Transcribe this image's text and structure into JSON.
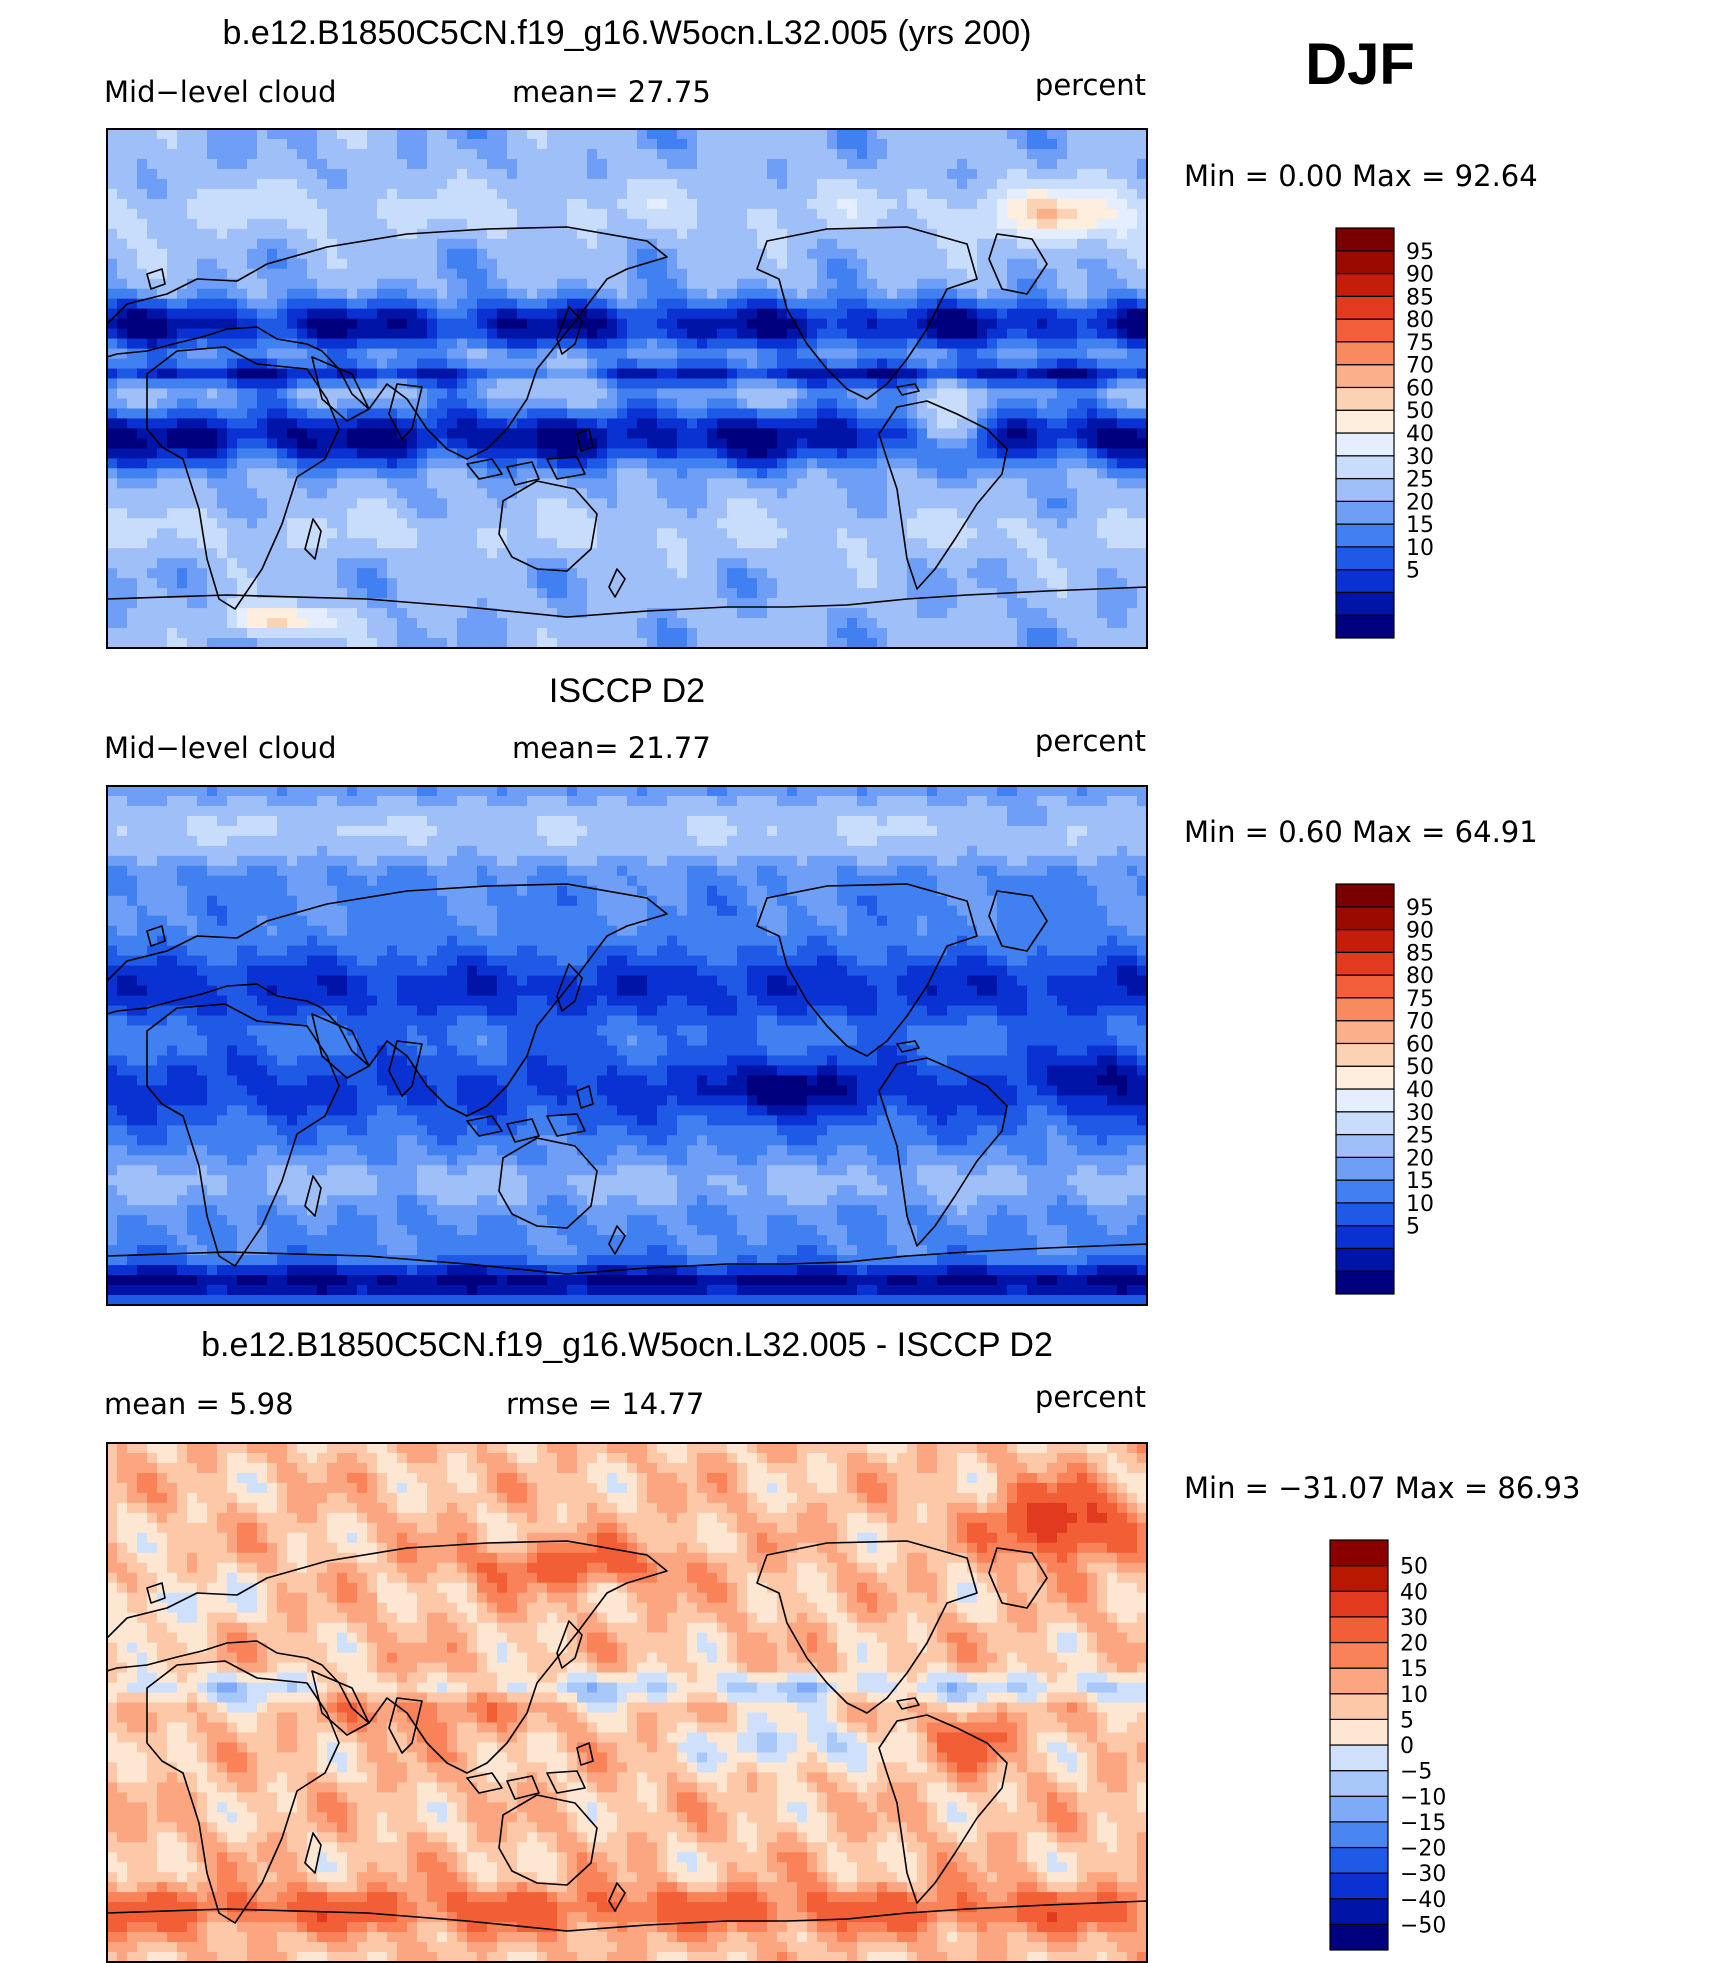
{
  "season": "DJF",
  "palettes": {
    "absolute": [
      "#00007f",
      "#0014a8",
      "#0a32d2",
      "#1e5ae6",
      "#4080f0",
      "#6e9ef5",
      "#9fbff9",
      "#c8dcfc",
      "#e4eefe",
      "#fdeedd",
      "#fcd2b4",
      "#fbb08a",
      "#f98a5e",
      "#f2603a",
      "#e23a1e",
      "#c41e0a",
      "#9a0a00",
      "#7a0000"
    ],
    "difference": [
      "#00007f",
      "#0014a8",
      "#0a32d2",
      "#1e5ae6",
      "#4a86f2",
      "#7eaaf7",
      "#a9c8fa",
      "#cfe0fc",
      "#fde6d2",
      "#fcc8a8",
      "#fba680",
      "#f98258",
      "#f25e36",
      "#e23a1e",
      "#b81800",
      "#8a0000"
    ]
  },
  "panels": [
    {
      "title": "b.e12.B1850C5CN.f19_g16.W5ocn.L32.005 (yrs 200)",
      "left_label": "Mid−level cloud",
      "center_label": "mean=   27.75",
      "units": "percent",
      "minmax": "Min  =      0.00  Max  =     92.64",
      "palette": "absolute",
      "legend_ticks": [
        "95",
        "90",
        "85",
        "80",
        "75",
        "70",
        "60",
        "50",
        "40",
        "30",
        "25",
        "20",
        "15",
        "10",
        "5"
      ],
      "field": "model"
    },
    {
      "title": "ISCCP D2",
      "left_label": "Mid−level cloud",
      "center_label": "mean=   21.77",
      "units": "percent",
      "minmax": "Min  =      0.60  Max  =     64.91",
      "palette": "absolute",
      "legend_ticks": [
        "95",
        "90",
        "85",
        "80",
        "75",
        "70",
        "60",
        "50",
        "40",
        "30",
        "25",
        "20",
        "15",
        "10",
        "5"
      ],
      "field": "obs"
    },
    {
      "title": "b.e12.B1850C5CN.f19_g16.W5ocn.L32.005 - ISCCP D2",
      "left_label": "mean  =      5.98",
      "center_label": "rmse  =     14.77",
      "units": "percent",
      "minmax": "Min  = −31.07  Max  =     86.93",
      "palette": "difference",
      "legend_ticks": [
        "50",
        "40",
        "30",
        "20",
        "15",
        "10",
        "5",
        "0",
        "−5",
        "−10",
        "−15",
        "−20",
        "−30",
        "−40",
        "−50"
      ],
      "field": "diff"
    }
  ],
  "chart_data": [
    {
      "type": "heatmap",
      "title": "b.e12.B1850C5CN.f19_g16.W5ocn.L32.005 (yrs 200)",
      "variable": "Mid-level cloud",
      "units": "percent",
      "mean": 27.75,
      "min": 0.0,
      "max": 92.64,
      "contour_levels": [
        5,
        10,
        15,
        20,
        25,
        30,
        40,
        50,
        60,
        70,
        75,
        80,
        85,
        90,
        95
      ],
      "lon_range": [
        0,
        360
      ],
      "lat_range": [
        -90,
        90
      ]
    },
    {
      "type": "heatmap",
      "title": "ISCCP D2",
      "variable": "Mid-level cloud",
      "units": "percent",
      "mean": 21.77,
      "min": 0.6,
      "max": 64.91,
      "contour_levels": [
        5,
        10,
        15,
        20,
        25,
        30,
        40,
        50,
        60,
        70,
        75,
        80,
        85,
        90,
        95
      ],
      "lon_range": [
        0,
        360
      ],
      "lat_range": [
        -90,
        90
      ]
    },
    {
      "type": "heatmap",
      "title": "b.e12.B1850C5CN.f19_g16.W5ocn.L32.005 - ISCCP D2",
      "units": "percent",
      "mean": 5.98,
      "rmse": 14.77,
      "min": -31.07,
      "max": 86.93,
      "contour_levels": [
        -50,
        -40,
        -30,
        -20,
        -15,
        -10,
        -5,
        0,
        5,
        10,
        15,
        20,
        30,
        40,
        50
      ],
      "lon_range": [
        0,
        360
      ],
      "lat_range": [
        -90,
        90
      ]
    }
  ]
}
